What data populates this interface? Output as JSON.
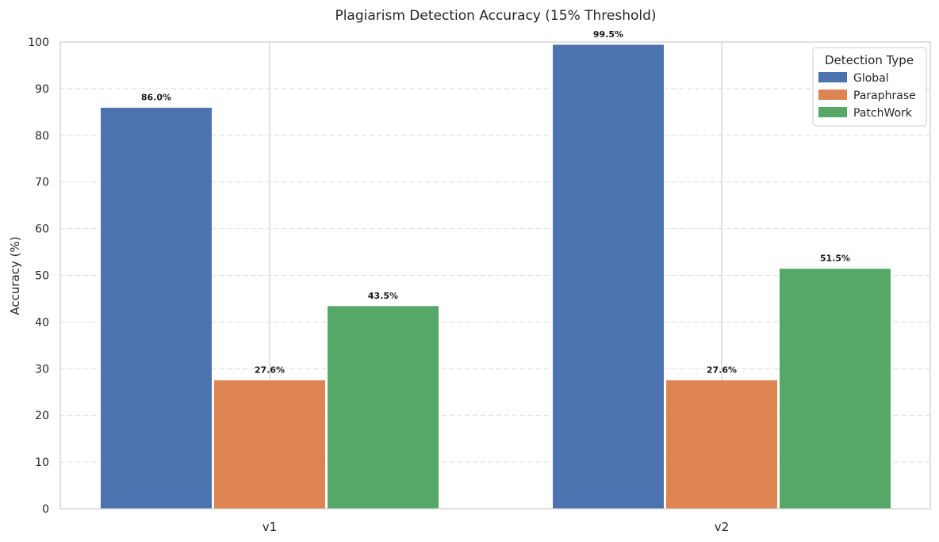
{
  "chart_data": {
    "type": "bar",
    "title": "Plagiarism Detection Accuracy (15% Threshold)",
    "xlabel": "",
    "ylabel": "Accuracy (%)",
    "categories": [
      "v1",
      "v2"
    ],
    "series": [
      {
        "name": "Global",
        "values": [
          86.0,
          99.5
        ],
        "color": "#4c72b0",
        "labels": [
          "86.0%",
          "99.5%"
        ]
      },
      {
        "name": "Paraphrase",
        "values": [
          27.6,
          27.6
        ],
        "color": "#dd8452",
        "labels": [
          "27.6%",
          "27.6%"
        ]
      },
      {
        "name": "PatchWork",
        "values": [
          43.5,
          51.5
        ],
        "color": "#55a868",
        "labels": [
          "43.5%",
          "51.5%"
        ]
      }
    ],
    "ylim": [
      0,
      100
    ],
    "yticks": [
      "0",
      "10",
      "20",
      "30",
      "40",
      "50",
      "60",
      "70",
      "80",
      "90",
      "100"
    ],
    "grid": "y-dashed",
    "legend": {
      "title": "Detection Type",
      "placement": "top-right"
    }
  }
}
